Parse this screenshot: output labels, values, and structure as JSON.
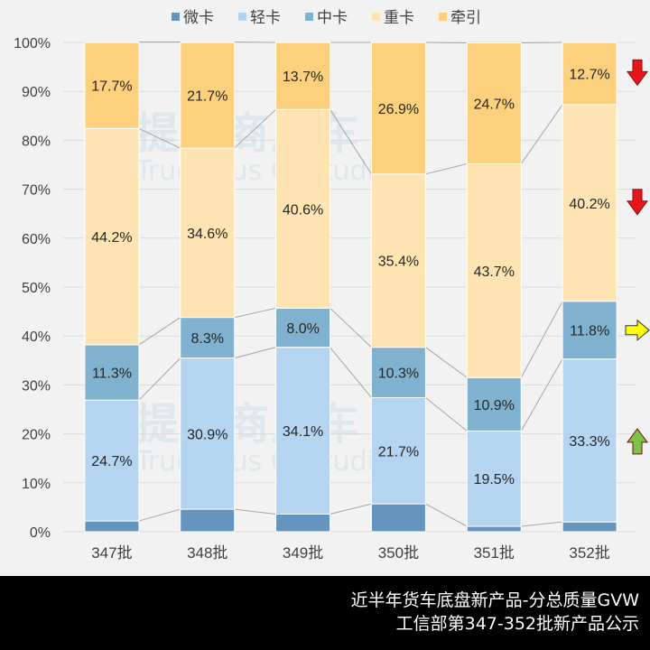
{
  "chart_data": {
    "type": "bar",
    "stacked": true,
    "percent": true,
    "categories": [
      "347批",
      "348批",
      "349批",
      "350批",
      "351批",
      "352批"
    ],
    "series": [
      {
        "name": "微卡",
        "color": "#6594bf",
        "values": [
          2.2,
          4.6,
          3.6,
          5.7,
          1.1,
          2.0
        ]
      },
      {
        "name": "轻卡",
        "color": "#b5d4ef",
        "values": [
          24.7,
          30.9,
          34.1,
          21.7,
          19.5,
          33.3
        ]
      },
      {
        "name": "中卡",
        "color": "#80b2d0",
        "values": [
          11.3,
          8.3,
          8.0,
          10.3,
          10.9,
          11.8
        ]
      },
      {
        "name": "重卡",
        "color": "#fde4b2",
        "values": [
          44.2,
          34.6,
          40.6,
          35.4,
          43.7,
          40.2
        ]
      },
      {
        "name": "牵引",
        "color": "#fcd07c",
        "values": [
          17.7,
          21.7,
          13.7,
          26.9,
          24.7,
          12.7
        ]
      }
    ],
    "ylim": [
      0,
      100
    ],
    "yticks": [
      "0%",
      "10%",
      "20%",
      "30%",
      "40%",
      "50%",
      "60%",
      "70%",
      "80%",
      "90%",
      "100%"
    ],
    "grid": true,
    "legend": "top",
    "trend_arrows": [
      {
        "series": "牵引",
        "direction": "down",
        "color": "#e8161b"
      },
      {
        "series": "重卡",
        "direction": "down",
        "color": "#e8161b"
      },
      {
        "series": "中卡",
        "direction": "right",
        "color": "#ffff00"
      },
      {
        "series": "轻卡",
        "direction": "up",
        "color": "#7ec24a"
      }
    ]
  },
  "footer": {
    "line1": "近半年货车底盘新产品-分总质量GVW",
    "line2": "工信部第347-352批新产品公示"
  },
  "watermark": {
    "cn": "提加商用车",
    "en": "TruckPlus CVstudio"
  }
}
